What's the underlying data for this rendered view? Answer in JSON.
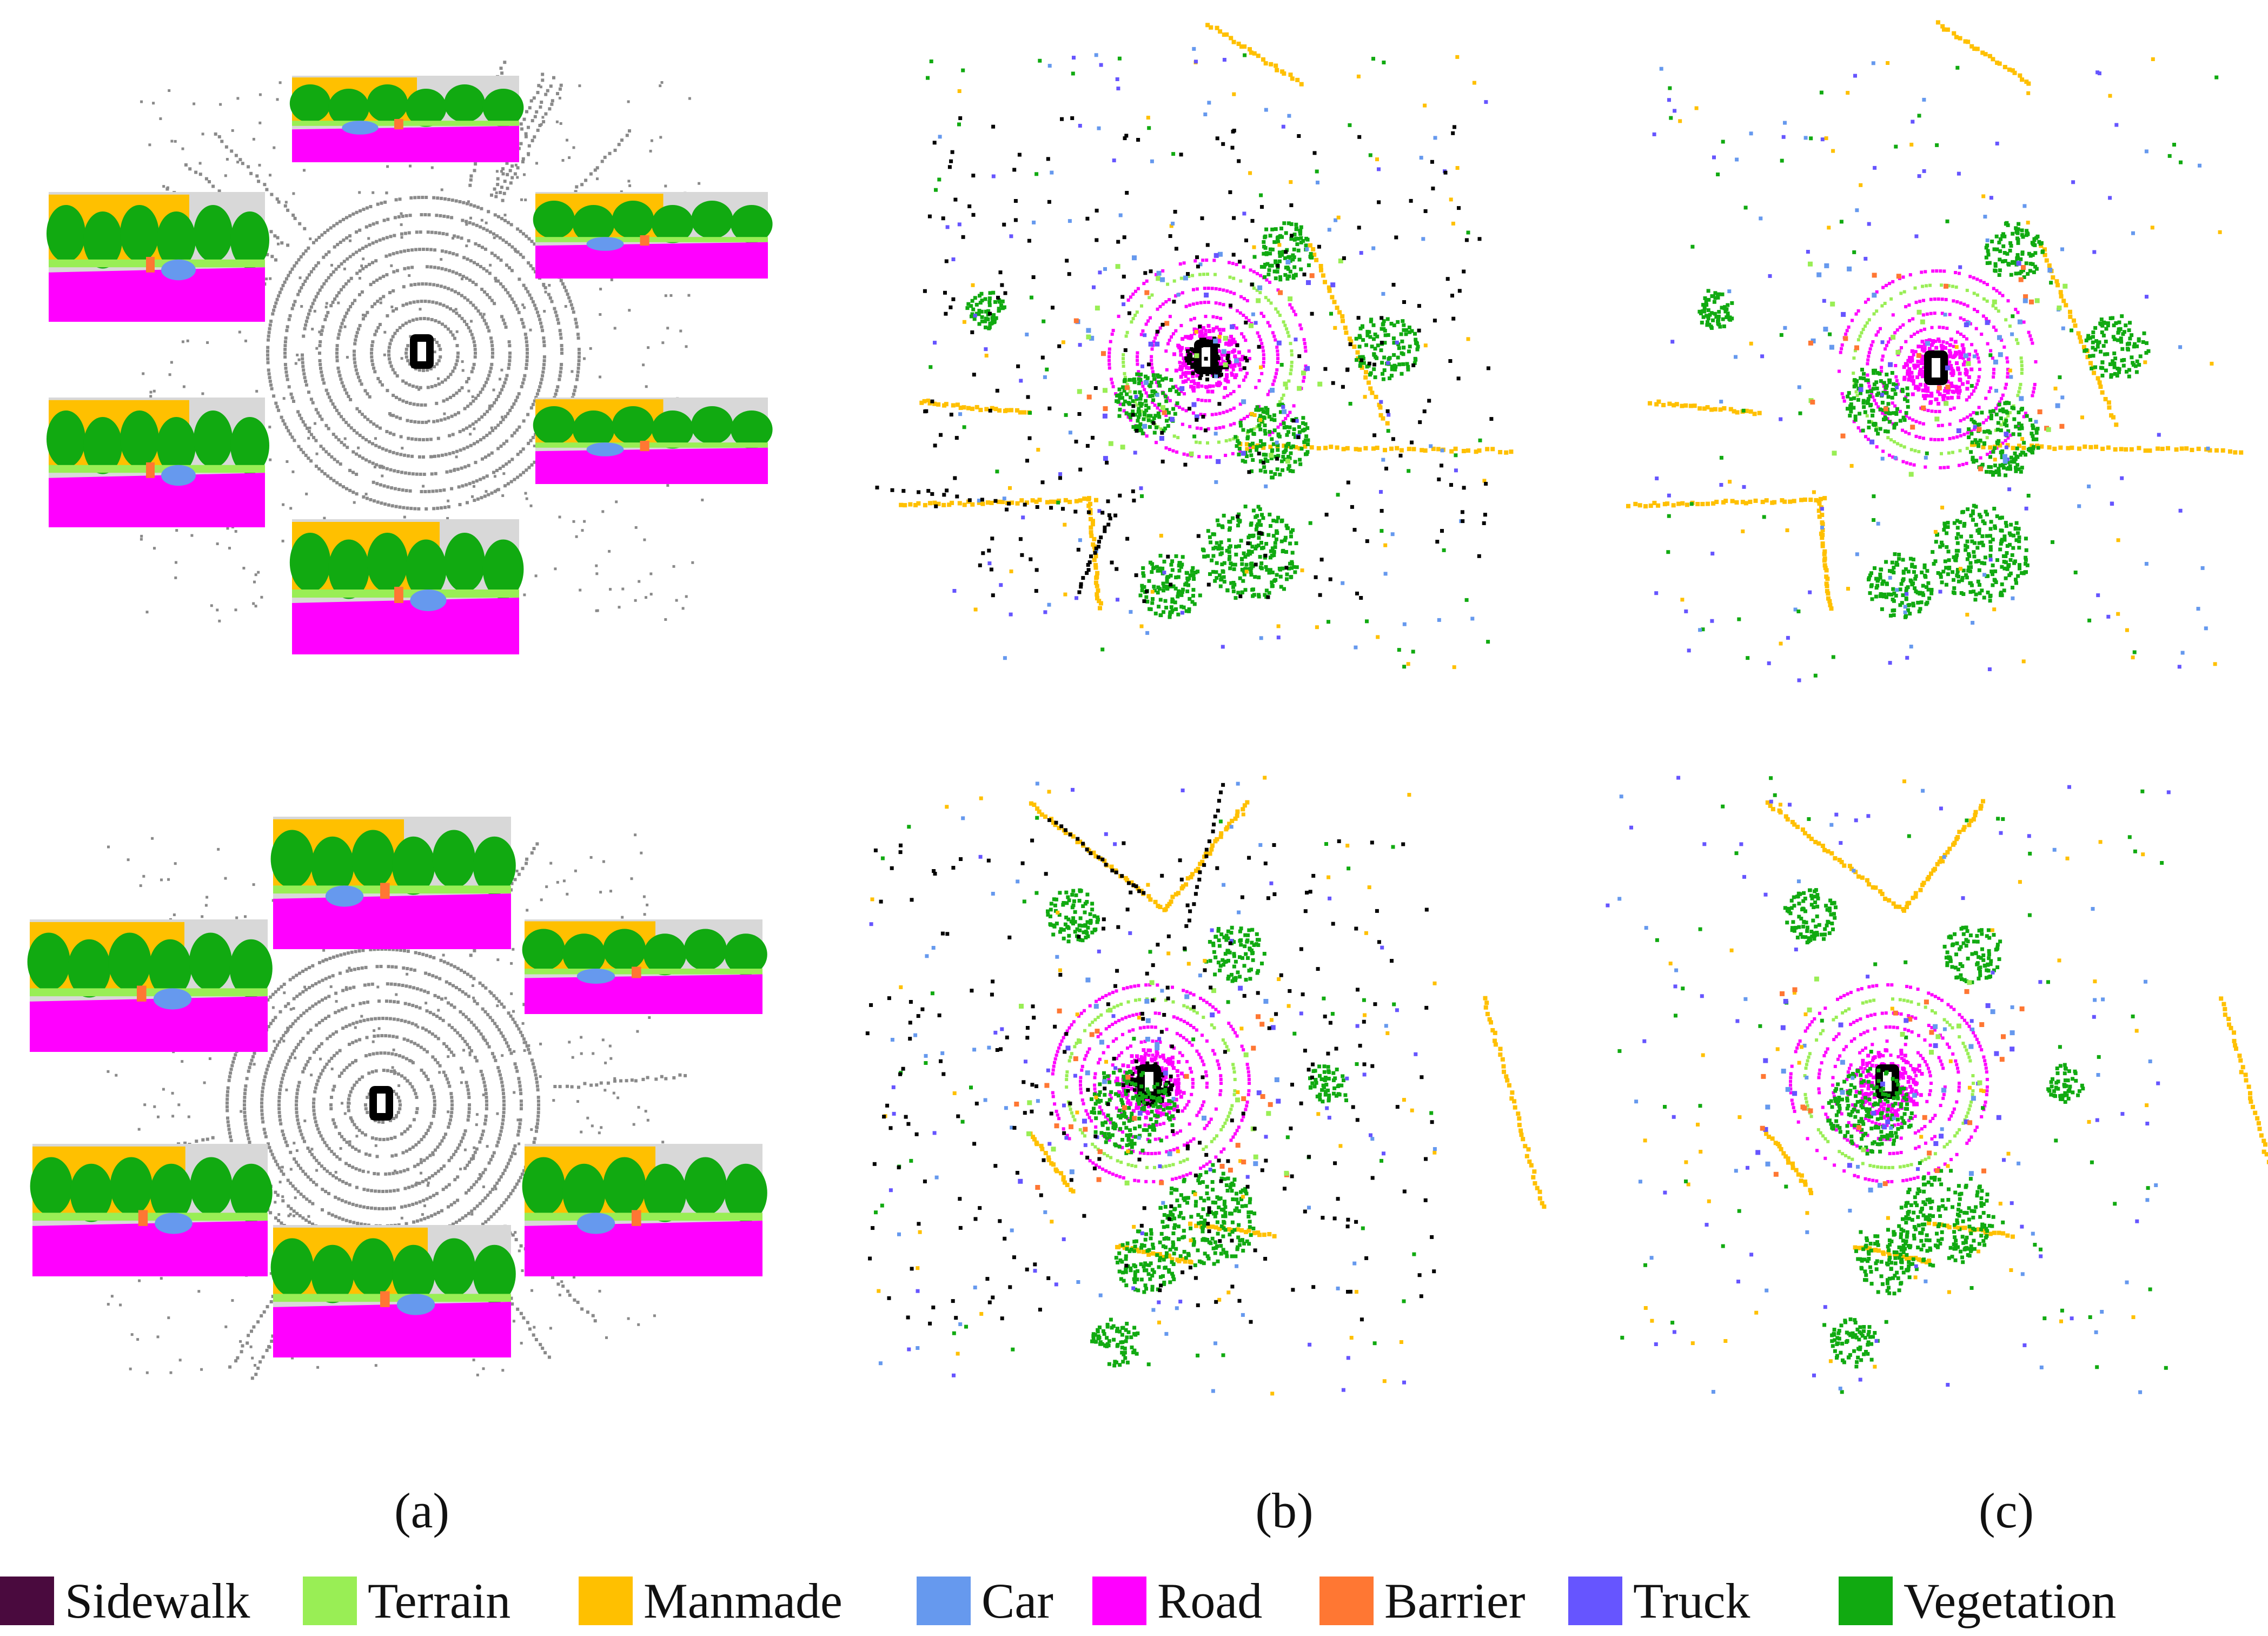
{
  "panels": [
    {
      "caption": "(a)"
    },
    {
      "caption": "(b)"
    },
    {
      "caption": "(c)"
    }
  ],
  "legend": [
    {
      "label": "Sidewalk",
      "color": "#4a0a3e"
    },
    {
      "label": "Terrain",
      "color": "#99ee55"
    },
    {
      "label": "Manmade",
      "color": "#ffc000"
    },
    {
      "label": "Car",
      "color": "#6699ee"
    },
    {
      "label": "Road",
      "color": "#ff00ff"
    },
    {
      "label": "Barrier",
      "color": "#ff7733"
    },
    {
      "label": "Truck",
      "color": "#6655ff"
    },
    {
      "label": "Vegetation",
      "color": "#11aa11"
    }
  ],
  "colors": {
    "lidar_gray": "#8a8a8a",
    "unlabeled": "#000000",
    "sky": "#d8d8d8"
  }
}
